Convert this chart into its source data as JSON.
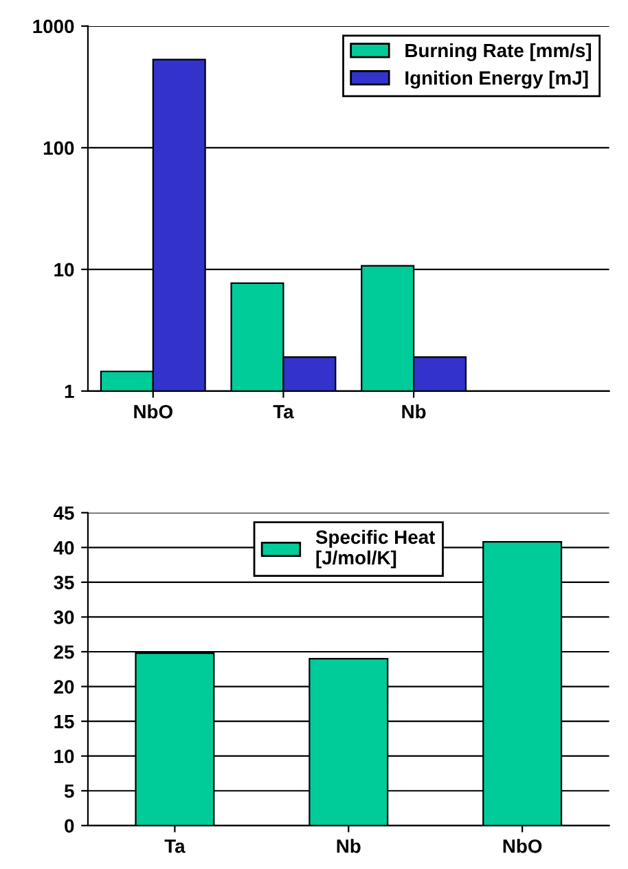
{
  "chart_data": [
    {
      "type": "bar",
      "categories": [
        "NbO",
        "Ta",
        "Nb"
      ],
      "log": "y",
      "ylim": [
        1,
        1000
      ],
      "yticks": [
        1,
        10,
        100,
        1000
      ],
      "grid": "y",
      "legend": "top right",
      "series": [
        {
          "name": "Burning Rate [mm/s]",
          "color": "#00cc99",
          "values": [
            1.45,
            7.7,
            10.7
          ]
        },
        {
          "name": "Ignition Energy [mJ]",
          "color": "#3333cc",
          "values": [
            530,
            1.9,
            1.9
          ]
        }
      ]
    },
    {
      "type": "bar",
      "categories": [
        "Ta",
        "Nb",
        "NbO"
      ],
      "ylim": [
        0,
        45
      ],
      "yticks": [
        0,
        5,
        10,
        15,
        20,
        25,
        30,
        35,
        40,
        45
      ],
      "grid": "y",
      "legend": "top",
      "series": [
        {
          "name": "Specific Heat\n[J/mol/K]",
          "color": "#00cc99",
          "values": [
            24.8,
            24,
            40.8
          ]
        }
      ]
    }
  ]
}
